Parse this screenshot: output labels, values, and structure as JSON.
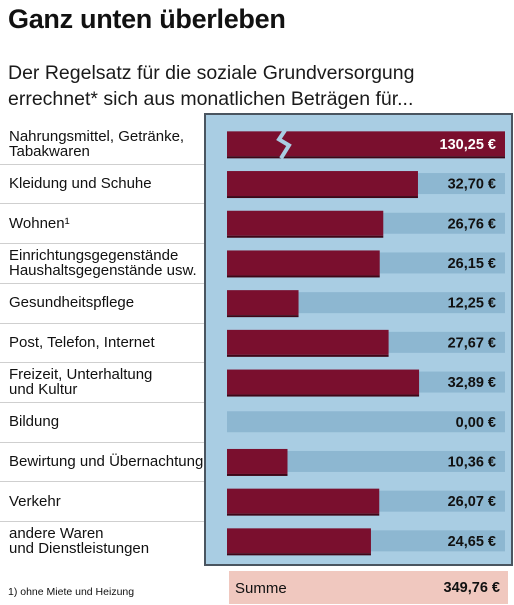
{
  "header": {
    "title": "Ganz unten überleben",
    "subtitle": "Der Regelsatz für die soziale Grundversorgung errechnet* sich aus monatlichen Beträgen für..."
  },
  "colors": {
    "bar": "#7a0f2e",
    "track": "#8db7d1",
    "panel": "#a9cde3",
    "summary_bg": "#f0c8bf"
  },
  "chart_data": {
    "type": "bar",
    "orientation": "horizontal",
    "unit": "€",
    "axis_break_on_first_bar": true,
    "categories": [
      "Nahrungsmittel, Getränke,\nTabakwaren",
      "Kleidung und Schuhe",
      "Wohnen¹",
      "Einrichtungsgegenstände\nHaushaltsgegenstände usw.",
      "Gesundheitspflege",
      "Post, Telefon, Internet",
      "Freizeit, Unterhaltung\nund Kultur",
      "Bildung",
      "Bewirtung und Übernachtung",
      "Verkehr",
      "andere Waren\nund Dienstleistungen"
    ],
    "values": [
      130.25,
      32.7,
      26.76,
      26.15,
      12.25,
      27.67,
      32.89,
      0.0,
      10.36,
      26.07,
      24.65
    ],
    "value_labels": [
      "130,25 €",
      "32,70 €",
      "26,76 €",
      "26,15 €",
      "12,25 €",
      "27,67 €",
      "32,89 €",
      "0,00 €",
      "10,36 €",
      "26,07 €",
      "24,65 €"
    ],
    "xlim": [
      0,
      50
    ]
  },
  "summary": {
    "label": "Summe",
    "value": "349,76 €"
  },
  "footnote": "1) ohne Miete und Heizung"
}
